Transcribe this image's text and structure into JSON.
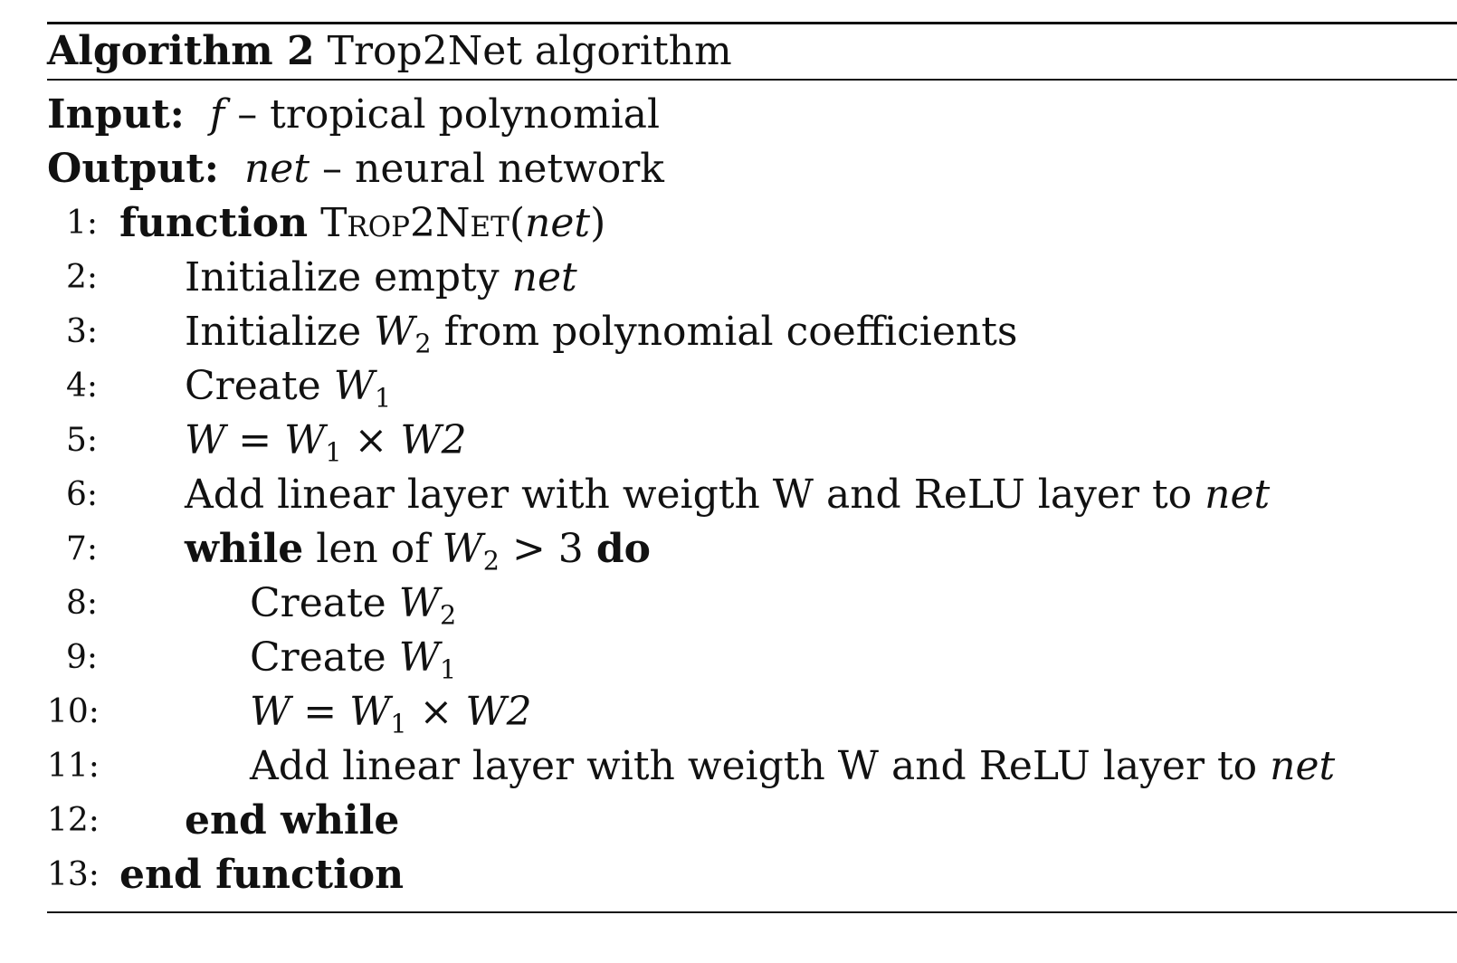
{
  "algorithm": {
    "label": "Algorithm 2",
    "title": "Trop2Net algorithm",
    "input": {
      "label": "Input:",
      "var": "f",
      "desc": "– tropical polynomial"
    },
    "output": {
      "label": "Output:",
      "var": "net",
      "desc": "– neural network"
    },
    "lines": [
      {
        "num": "1:",
        "kw": "function",
        "name": "Trop2Net",
        "open": "(",
        "arg": "net",
        "close": ")"
      },
      {
        "num": "2:",
        "text": "Initialize empty",
        "var": "net"
      },
      {
        "num": "3:",
        "pre": "Initialize",
        "var": "W",
        "sub": "2",
        "post": "from polynomial coefficients"
      },
      {
        "num": "4:",
        "pre": "Create",
        "var": "W",
        "sub": "1"
      },
      {
        "num": "5:",
        "eq_lhs": "W",
        "eq": "=",
        "var": "W",
        "sub": "1",
        "op": "×",
        "rhs": "W2"
      },
      {
        "num": "6:",
        "text": "Add linear layer with weigth W and ReLU layer to",
        "var": "net"
      },
      {
        "num": "7:",
        "kw": "while",
        "pre": "len of",
        "var": "W",
        "sub": "2",
        "cmp": "> 3",
        "kw2": "do"
      },
      {
        "num": "8:",
        "pre": "Create",
        "var": "W",
        "sub": "2"
      },
      {
        "num": "9:",
        "pre": "Create",
        "var": "W",
        "sub": "1"
      },
      {
        "num": "10:",
        "eq_lhs": "W",
        "eq": "=",
        "var": "W",
        "sub": "1",
        "op": "×",
        "rhs": "W2"
      },
      {
        "num": "11:",
        "text": "Add linear layer with weigth W and ReLU layer to",
        "var": "net"
      },
      {
        "num": "12:",
        "kw": "end while"
      },
      {
        "num": "13:",
        "kw": "end function"
      }
    ]
  }
}
